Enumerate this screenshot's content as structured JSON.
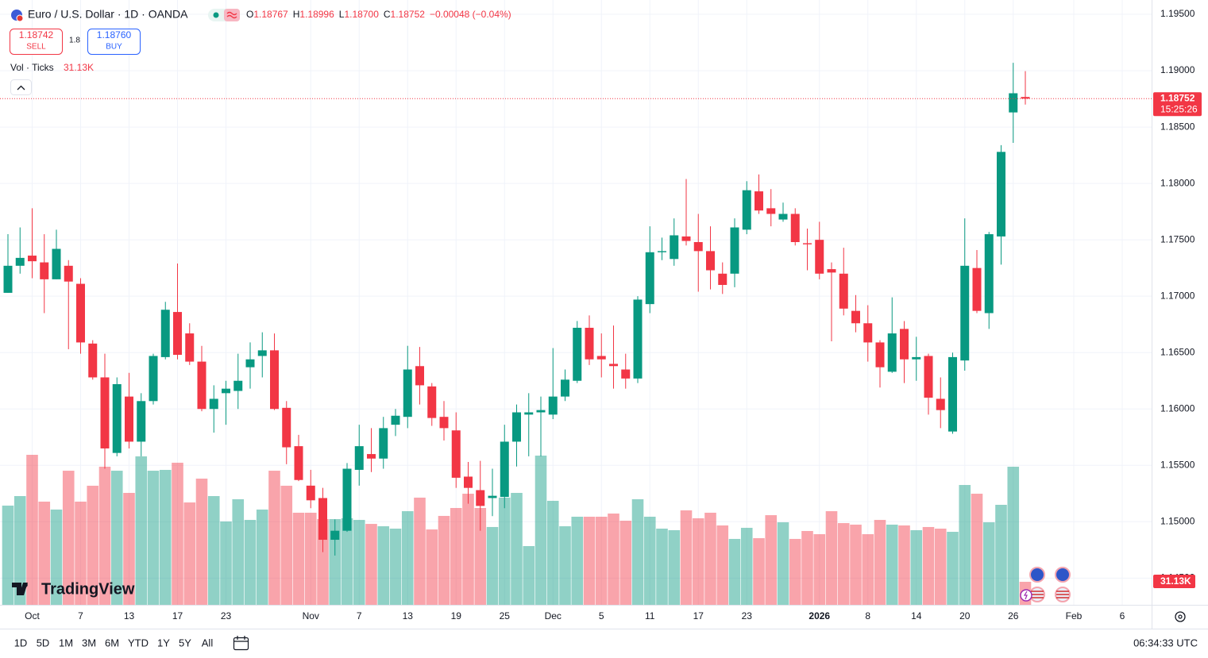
{
  "header": {
    "title": "Euro / U.S. Dollar · 1D · OANDA",
    "ohlc_labels": [
      "O",
      "H",
      "L",
      "C"
    ],
    "ohlc_values": [
      "1.18767",
      "1.18996",
      "1.18700",
      "1.18752"
    ],
    "change": "−0.00048 (−0.04%)"
  },
  "trade": {
    "sell_price": "1.18742",
    "sell_label": "SELL",
    "spread": "1.8",
    "buy_price": "1.18760",
    "buy_label": "BUY"
  },
  "volume_legend": {
    "label": "Vol · Ticks",
    "value": "31.13K"
  },
  "countdown": "15:25:26",
  "logo": "TradingView",
  "toolbar": {
    "ranges": [
      "1D",
      "5D",
      "1M",
      "3M",
      "6M",
      "YTD",
      "1Y",
      "5Y",
      "All"
    ],
    "clock": "06:34:33 UTC"
  },
  "chart_data": {
    "type": "candlestick",
    "categories": [
      null,
      null,
      "Oct",
      null,
      null,
      null,
      "7",
      null,
      null,
      null,
      "13",
      null,
      null,
      null,
      "17",
      null,
      null,
      null,
      "23",
      null,
      null,
      null,
      null,
      null,
      null,
      "Nov",
      null,
      null,
      null,
      "7",
      null,
      null,
      null,
      "13",
      null,
      null,
      null,
      "19",
      null,
      null,
      null,
      "25",
      null,
      null,
      null,
      "Dec",
      null,
      null,
      null,
      "5",
      null,
      null,
      null,
      "11",
      null,
      null,
      null,
      "17",
      null,
      null,
      null,
      "23",
      null,
      null,
      null,
      null,
      null,
      "2026",
      null,
      null,
      null,
      "8",
      null,
      null,
      null,
      "14",
      null,
      null,
      null,
      "20",
      null,
      null,
      null,
      "26",
      null,
      null,
      null,
      null,
      "Feb",
      null,
      null,
      null,
      "6"
    ],
    "open": [
      1.1703,
      1.1727,
      1.1736,
      1.173,
      1.1715,
      1.1727,
      1.1711,
      1.1658,
      1.1628,
      1.1561,
      1.1611,
      1.1571,
      1.1607,
      1.1646,
      1.1686,
      1.1667,
      1.1642,
      1.16,
      1.1614,
      1.1616,
      1.1637,
      1.1647,
      1.1652,
      1.1601,
      1.1567,
      1.1532,
      1.1521,
      1.1484,
      1.1492,
      1.1546,
      1.156,
      1.1556,
      1.1586,
      1.1593,
      1.1638,
      1.162,
      1.1593,
      1.1581,
      1.154,
      1.1528,
      1.1521,
      1.1522,
      1.1571,
      1.1595,
      1.1597,
      1.1595,
      1.1611,
      1.1625,
      1.1672,
      1.1647,
      1.164,
      1.1635,
      1.1627,
      1.1693,
      1.1739,
      1.1733,
      1.1753,
      1.1748,
      1.174,
      1.172,
      1.172,
      1.1759,
      1.1793,
      1.1778,
      1.1768,
      1.1773,
      1.1747,
      1.175,
      1.1724,
      1.172,
      1.1687,
      1.1676,
      1.1659,
      1.1633,
      1.1671,
      1.1644,
      1.1647,
      1.1609,
      1.158,
      1.1643,
      1.1725,
      1.1685,
      1.1753,
      1.1863,
      1.18767,
      null,
      null,
      null,
      null,
      null,
      null,
      null,
      null
    ],
    "high": [
      1.1755,
      1.1761,
      1.1778,
      1.1755,
      1.1759,
      1.1732,
      1.1716,
      1.1661,
      1.1649,
      1.1628,
      1.1632,
      1.1614,
      1.1649,
      1.1695,
      1.1729,
      1.1676,
      1.1656,
      1.1621,
      1.1625,
      1.1649,
      1.1659,
      1.1668,
      1.1667,
      1.1607,
      1.1577,
      1.1546,
      1.153,
      1.1502,
      1.1552,
      1.1586,
      1.1583,
      1.1593,
      1.16,
      1.1656,
      1.1655,
      1.1623,
      1.1607,
      1.1597,
      1.1553,
      1.1554,
      1.1547,
      1.1586,
      1.1604,
      1.1614,
      1.1611,
      1.1654,
      1.1635,
      1.1678,
      1.1683,
      1.1667,
      1.1674,
      1.1649,
      1.17,
      1.1762,
      1.1752,
      1.1769,
      1.1804,
      1.1773,
      1.1762,
      1.173,
      1.1769,
      1.1802,
      1.1808,
      1.1795,
      1.1783,
      1.1778,
      1.176,
      1.1766,
      1.173,
      1.1743,
      1.1701,
      1.1692,
      1.1661,
      1.1699,
      1.1678,
      1.1664,
      1.1649,
      1.1628,
      1.165,
      1.1769,
      1.1741,
      1.1757,
      1.1834,
      1.1907,
      1.18996,
      null,
      null,
      null,
      null,
      null,
      null,
      null,
      null
    ],
    "low": [
      1.1703,
      1.172,
      1.1716,
      1.1685,
      1.1715,
      1.1653,
      1.1649,
      1.1626,
      1.1547,
      1.1558,
      1.1565,
      1.1558,
      1.1604,
      1.1644,
      1.1644,
      1.1639,
      1.1598,
      1.1579,
      1.1586,
      1.16,
      1.1618,
      1.1628,
      1.1599,
      1.1551,
      1.1536,
      1.1512,
      1.1473,
      1.147,
      1.1491,
      1.1532,
      1.1544,
      1.1547,
      1.1576,
      1.1583,
      1.1604,
      1.1585,
      1.1572,
      1.153,
      1.1516,
      1.1492,
      1.1505,
      1.1512,
      1.1549,
      1.1558,
      1.1558,
      1.1591,
      1.1607,
      1.1623,
      1.1639,
      1.1628,
      1.1618,
      1.1618,
      1.1623,
      1.1685,
      1.1732,
      1.1727,
      1.1745,
      1.1704,
      1.1706,
      1.1702,
      1.1708,
      1.1755,
      1.1773,
      1.1762,
      1.1766,
      1.1745,
      1.1723,
      1.1715,
      1.166,
      1.1683,
      1.1668,
      1.1642,
      1.1619,
      1.1632,
      1.1623,
      1.1625,
      1.1595,
      1.1583,
      1.1578,
      1.1634,
      1.1685,
      1.1671,
      1.1728,
      1.1836,
      1.187,
      null,
      null,
      null,
      null,
      null,
      null,
      null,
      null
    ],
    "close": [
      1.1727,
      1.1734,
      1.1731,
      1.1715,
      1.1742,
      1.1713,
      1.1659,
      1.1628,
      1.1565,
      1.1622,
      1.1571,
      1.1607,
      1.1647,
      1.1688,
      1.1648,
      1.1642,
      1.16,
      1.1609,
      1.1618,
      1.1625,
      1.1644,
      1.1652,
      1.16,
      1.1566,
      1.1537,
      1.1519,
      1.1484,
      1.1492,
      1.1547,
      1.1567,
      1.1556,
      1.1583,
      1.1594,
      1.1635,
      1.1621,
      1.1592,
      1.1583,
      1.1539,
      1.153,
      1.1514,
      1.1523,
      1.1571,
      1.1597,
      1.1597,
      1.1599,
      1.1611,
      1.1626,
      1.1672,
      1.1644,
      1.1644,
      1.1638,
      1.1627,
      1.1697,
      1.1739,
      1.174,
      1.1754,
      1.1749,
      1.174,
      1.1723,
      1.171,
      1.1761,
      1.1794,
      1.1776,
      1.1773,
      1.1773,
      1.1748,
      1.1746,
      1.172,
      1.1721,
      1.1689,
      1.1676,
      1.1659,
      1.1637,
      1.1667,
      1.1644,
      1.1646,
      1.161,
      1.1599,
      1.1646,
      1.1727,
      1.1687,
      1.1755,
      1.1828,
      1.188,
      1.18752,
      null,
      null,
      null,
      null,
      null,
      null,
      null,
      null
    ],
    "volume": [
      134100,
      147000,
      202800,
      139500,
      128800,
      181300,
      139500,
      161000,
      186700,
      181300,
      151300,
      200700,
      181300,
      182400,
      192100,
      138400,
      170600,
      147000,
      112700,
      142700,
      114800,
      128800,
      181300,
      161000,
      124500,
      124500,
      115900,
      115900,
      117000,
      114800,
      109400,
      106200,
      103000,
      126600,
      144900,
      101900,
      120200,
      130900,
      150200,
      130900,
      105200,
      144900,
      151300,
      79400,
      201700,
      140600,
      106200,
      119100,
      119100,
      119100,
      123400,
      113700,
      142700,
      119100,
      103000,
      100900,
      127700,
      117000,
      124500,
      107300,
      89100,
      104100,
      90100,
      121200,
      111600,
      89100,
      99800,
      95500,
      126600,
      110500,
      108400,
      95500,
      114800,
      108400,
      107300,
      100900,
      105200,
      103000,
      98700,
      162000,
      150200,
      111600,
      135200,
      186700,
      31130,
      null,
      null,
      null,
      null,
      null,
      null,
      null,
      null
    ],
    "up_color": "#089981",
    "down_color": "#f23645",
    "ylim": [
      1.14263,
      1.19627
    ],
    "yticks": [
      {
        "value": 1.195,
        "label": "1.19500"
      },
      {
        "value": 1.19,
        "label": "1.19000"
      },
      {
        "value": 1.185,
        "label": "1.18500"
      },
      {
        "value": 1.18,
        "label": "1.18000"
      },
      {
        "value": 1.175,
        "label": "1.17500"
      },
      {
        "value": 1.17,
        "label": "1.17000"
      },
      {
        "value": 1.165,
        "label": "1.16500"
      },
      {
        "value": 1.16,
        "label": "1.16000"
      },
      {
        "value": 1.155,
        "label": "1.15500"
      },
      {
        "value": 1.15,
        "label": "1.15000"
      },
      {
        "value": 1.145,
        "label": "1.14500"
      }
    ],
    "grid": true
  }
}
